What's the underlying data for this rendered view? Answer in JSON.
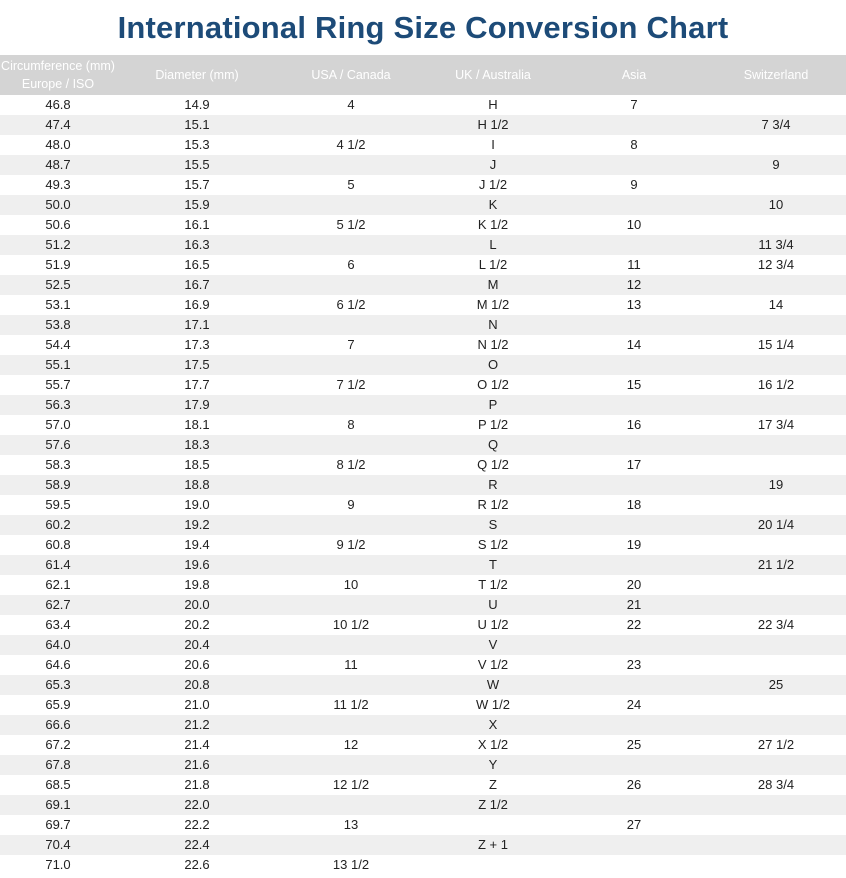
{
  "title": "International Ring Size Conversion Chart",
  "headers": [
    "Circumference (mm)\nEurope / ISO",
    "Diameter (mm)",
    "USA / Canada",
    "UK / Australia",
    "Asia",
    "Switzerland"
  ],
  "header_line1": "Circumference (mm)",
  "header_line2": "Europe / ISO",
  "rows": [
    [
      "46.8",
      "14.9",
      "4",
      "H",
      "7",
      ""
    ],
    [
      "47.4",
      "15.1",
      "",
      "H 1/2",
      "",
      "7 3/4"
    ],
    [
      "48.0",
      "15.3",
      "4 1/2",
      "I",
      "8",
      ""
    ],
    [
      "48.7",
      "15.5",
      "",
      "J",
      "",
      "9"
    ],
    [
      "49.3",
      "15.7",
      "5",
      "J 1/2",
      "9",
      ""
    ],
    [
      "50.0",
      "15.9",
      "",
      "K",
      "",
      "10"
    ],
    [
      "50.6",
      "16.1",
      "5 1/2",
      "K 1/2",
      "10",
      ""
    ],
    [
      "51.2",
      "16.3",
      "",
      "L",
      "",
      "11 3/4"
    ],
    [
      "51.9",
      "16.5",
      "6",
      "L 1/2",
      "11",
      "12 3/4"
    ],
    [
      "52.5",
      "16.7",
      "",
      "M",
      "12",
      ""
    ],
    [
      "53.1",
      "16.9",
      "6 1/2",
      "M 1/2",
      "13",
      "14"
    ],
    [
      "53.8",
      "17.1",
      "",
      "N",
      "",
      ""
    ],
    [
      "54.4",
      "17.3",
      "7",
      "N 1/2",
      "14",
      "15 1/4"
    ],
    [
      "55.1",
      "17.5",
      "",
      "O",
      "",
      ""
    ],
    [
      "55.7",
      "17.7",
      "7 1/2",
      "O 1/2",
      "15",
      "16 1/2"
    ],
    [
      "56.3",
      "17.9",
      "",
      "P",
      "",
      ""
    ],
    [
      "57.0",
      "18.1",
      "8",
      "P 1/2",
      "16",
      "17 3/4"
    ],
    [
      "57.6",
      "18.3",
      "",
      "Q",
      "",
      ""
    ],
    [
      "58.3",
      "18.5",
      "8 1/2",
      "Q 1/2",
      "17",
      ""
    ],
    [
      "58.9",
      "18.8",
      "",
      "R",
      "",
      "19"
    ],
    [
      "59.5",
      "19.0",
      "9",
      "R 1/2",
      "18",
      ""
    ],
    [
      "60.2",
      "19.2",
      "",
      "S",
      "",
      "20 1/4"
    ],
    [
      "60.8",
      "19.4",
      "9 1/2",
      "S 1/2",
      "19",
      ""
    ],
    [
      "61.4",
      "19.6",
      "",
      "T",
      "",
      "21 1/2"
    ],
    [
      "62.1",
      "19.8",
      "10",
      "T 1/2",
      "20",
      ""
    ],
    [
      "62.7",
      "20.0",
      "",
      "U",
      "21",
      ""
    ],
    [
      "63.4",
      "20.2",
      "10 1/2",
      "U 1/2",
      "22",
      "22 3/4"
    ],
    [
      "64.0",
      "20.4",
      "",
      "V",
      "",
      ""
    ],
    [
      "64.6",
      "20.6",
      "11",
      "V 1/2",
      "23",
      ""
    ],
    [
      "65.3",
      "20.8",
      "",
      "W",
      "",
      "25"
    ],
    [
      "65.9",
      "21.0",
      "11 1/2",
      "W 1/2",
      "24",
      ""
    ],
    [
      "66.6",
      "21.2",
      "",
      "X",
      "",
      ""
    ],
    [
      "67.2",
      "21.4",
      "12",
      "X 1/2",
      "25",
      "27 1/2"
    ],
    [
      "67.8",
      "21.6",
      "",
      "Y",
      "",
      ""
    ],
    [
      "68.5",
      "21.8",
      "12 1/2",
      "Z",
      "26",
      "28 3/4"
    ],
    [
      "69.1",
      "22.0",
      "",
      "Z 1/2",
      "",
      ""
    ],
    [
      "69.7",
      "22.2",
      "13",
      "",
      "27",
      ""
    ],
    [
      "70.4",
      "22.4",
      "",
      "Z + 1",
      "",
      ""
    ],
    [
      "71.0",
      "22.6",
      "13 1/2",
      "",
      "",
      ""
    ]
  ]
}
